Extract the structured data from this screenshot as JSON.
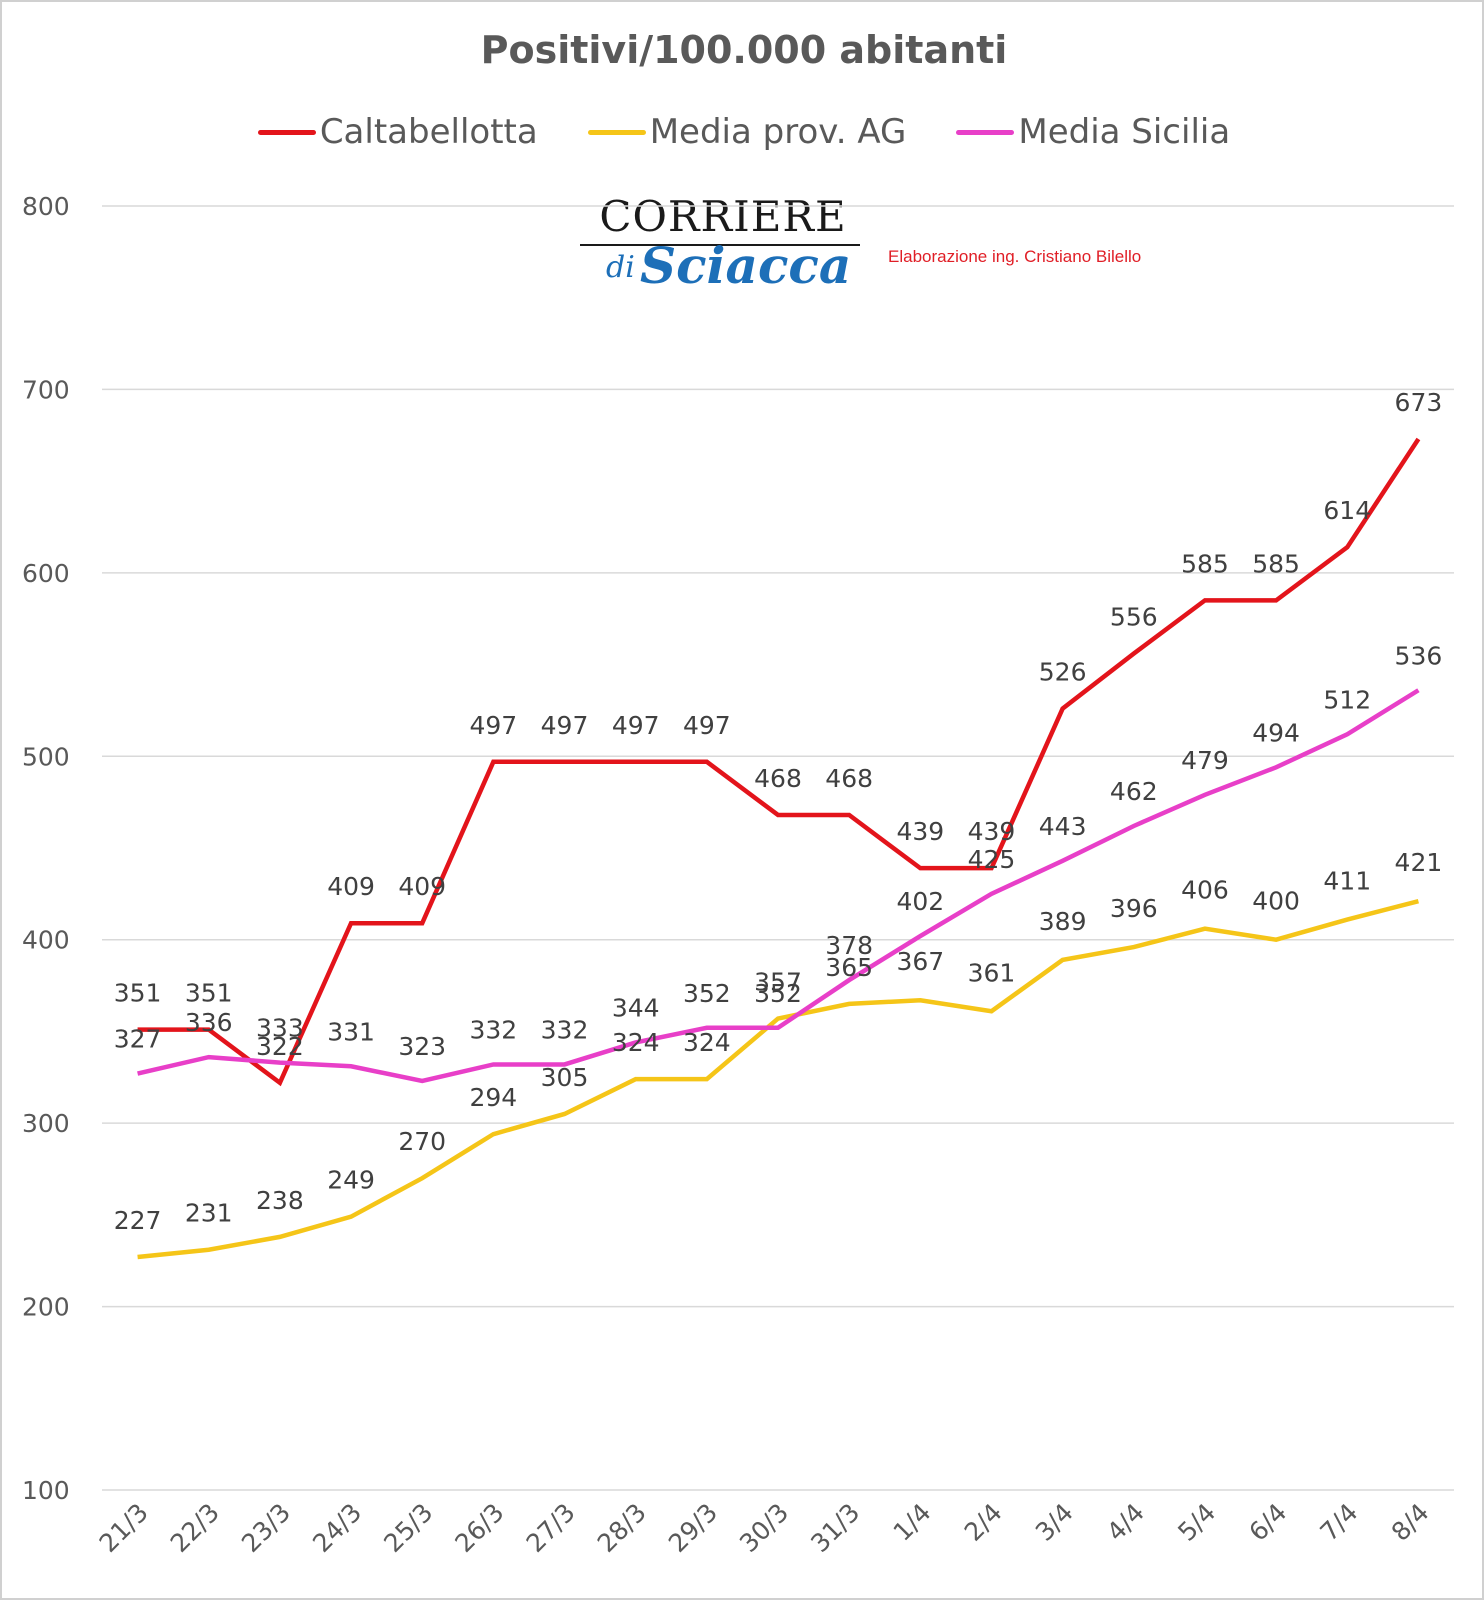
{
  "chart_data": {
    "type": "line",
    "title": "Positivi/100.000 abitanti",
    "categories": [
      "21/3",
      "22/3",
      "23/3",
      "24/3",
      "25/3",
      "26/3",
      "27/3",
      "28/3",
      "29/3",
      "30/3",
      "31/3",
      "1/4",
      "2/4",
      "3/4",
      "4/4",
      "5/4",
      "6/4",
      "7/4",
      "8/4"
    ],
    "series": [
      {
        "name": "Caltabellotta",
        "color": "#e3141b",
        "values": [
          351,
          351,
          322,
          409,
          409,
          497,
          497,
          497,
          497,
          468,
          468,
          439,
          439,
          526,
          556,
          585,
          585,
          614,
          673
        ]
      },
      {
        "name": "Media prov. AG",
        "color": "#f5c518",
        "values": [
          227,
          231,
          238,
          249,
          270,
          294,
          305,
          324,
          324,
          357,
          365,
          367,
          361,
          389,
          396,
          406,
          400,
          411,
          421
        ]
      },
      {
        "name": "Media Sicilia",
        "color": "#e83fc8",
        "values": [
          327,
          336,
          333,
          331,
          323,
          332,
          332,
          344,
          352,
          352,
          378,
          402,
          425,
          443,
          462,
          479,
          494,
          512,
          536
        ]
      }
    ],
    "ylim": [
      100,
      800
    ],
    "yticks": [
      100,
      200,
      300,
      400,
      500,
      600,
      700,
      800
    ],
    "grid": true,
    "legend_position": "top"
  },
  "logo": {
    "top": "CORRIERE",
    "di": "di",
    "bottom": "Sciacca"
  },
  "credit": "Elaborazione ing. Cristiano Bilello"
}
